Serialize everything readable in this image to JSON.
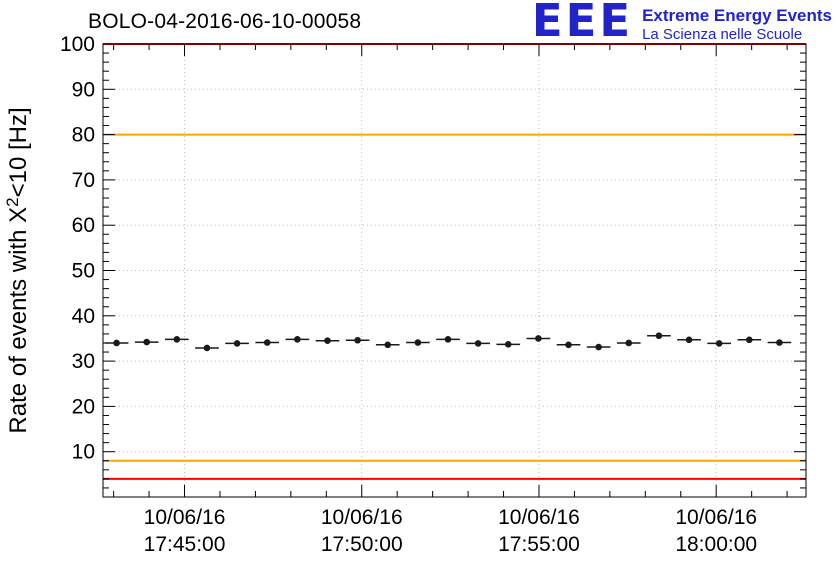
{
  "logo": {
    "acronym": "EEE",
    "line1": "Extreme Energy Events",
    "line2": "La Scienza nelle Scuole",
    "color": "#2323cc"
  },
  "chart_data": {
    "type": "scatter",
    "title": "BOLO-04-2016-06-10-00058",
    "ylabel": "Rate of events with X²<10 [Hz]",
    "ylabel_parts": {
      "pre": "Rate of events with X",
      "sup": "2",
      "post": "<10 [Hz]"
    },
    "xlabel": "",
    "ylim": [
      0,
      100
    ],
    "xlim_seconds": [
      2562,
      3752
    ],
    "y_tick_step": 10,
    "y_labeled_ticks": [
      10,
      20,
      30,
      40,
      50,
      60,
      70,
      80,
      90,
      100
    ],
    "x_ticks": [
      {
        "seconds": 2700,
        "date": "10/06/16",
        "time": "17:45:00"
      },
      {
        "seconds": 3000,
        "date": "10/06/16",
        "time": "17:50:00"
      },
      {
        "seconds": 3300,
        "date": "10/06/16",
        "time": "17:55:00"
      },
      {
        "seconds": 3600,
        "date": "10/06/16",
        "time": "18:00:00"
      }
    ],
    "grid": true,
    "thresholds": [
      {
        "y": 100,
        "color": "#ff0000",
        "name": "upper-alarm"
      },
      {
        "y": 80,
        "color": "#ffa500",
        "name": "upper-warning"
      },
      {
        "y": 8,
        "color": "#ffa500",
        "name": "lower-warning"
      },
      {
        "y": 4,
        "color": "#ff0000",
        "name": "lower-alarm"
      }
    ],
    "x_error_seconds": 20,
    "marker_color": "#1a1a1a",
    "series": [
      {
        "name": "event-rate",
        "x_seconds": [
          2585,
          2636,
          2687,
          2738,
          2789,
          2840,
          2891,
          2942,
          2993,
          3044,
          3095,
          3146,
          3197,
          3248,
          3299,
          3350,
          3401,
          3452,
          3503,
          3554,
          3605,
          3656,
          3707
        ],
        "y": [
          34.0,
          34.2,
          34.8,
          32.9,
          33.9,
          34.1,
          34.8,
          34.5,
          34.6,
          33.6,
          34.1,
          34.8,
          33.9,
          33.7,
          35.0,
          33.6,
          33.1,
          34.0,
          35.6,
          34.7,
          33.9,
          34.7,
          34.1
        ]
      }
    ]
  }
}
